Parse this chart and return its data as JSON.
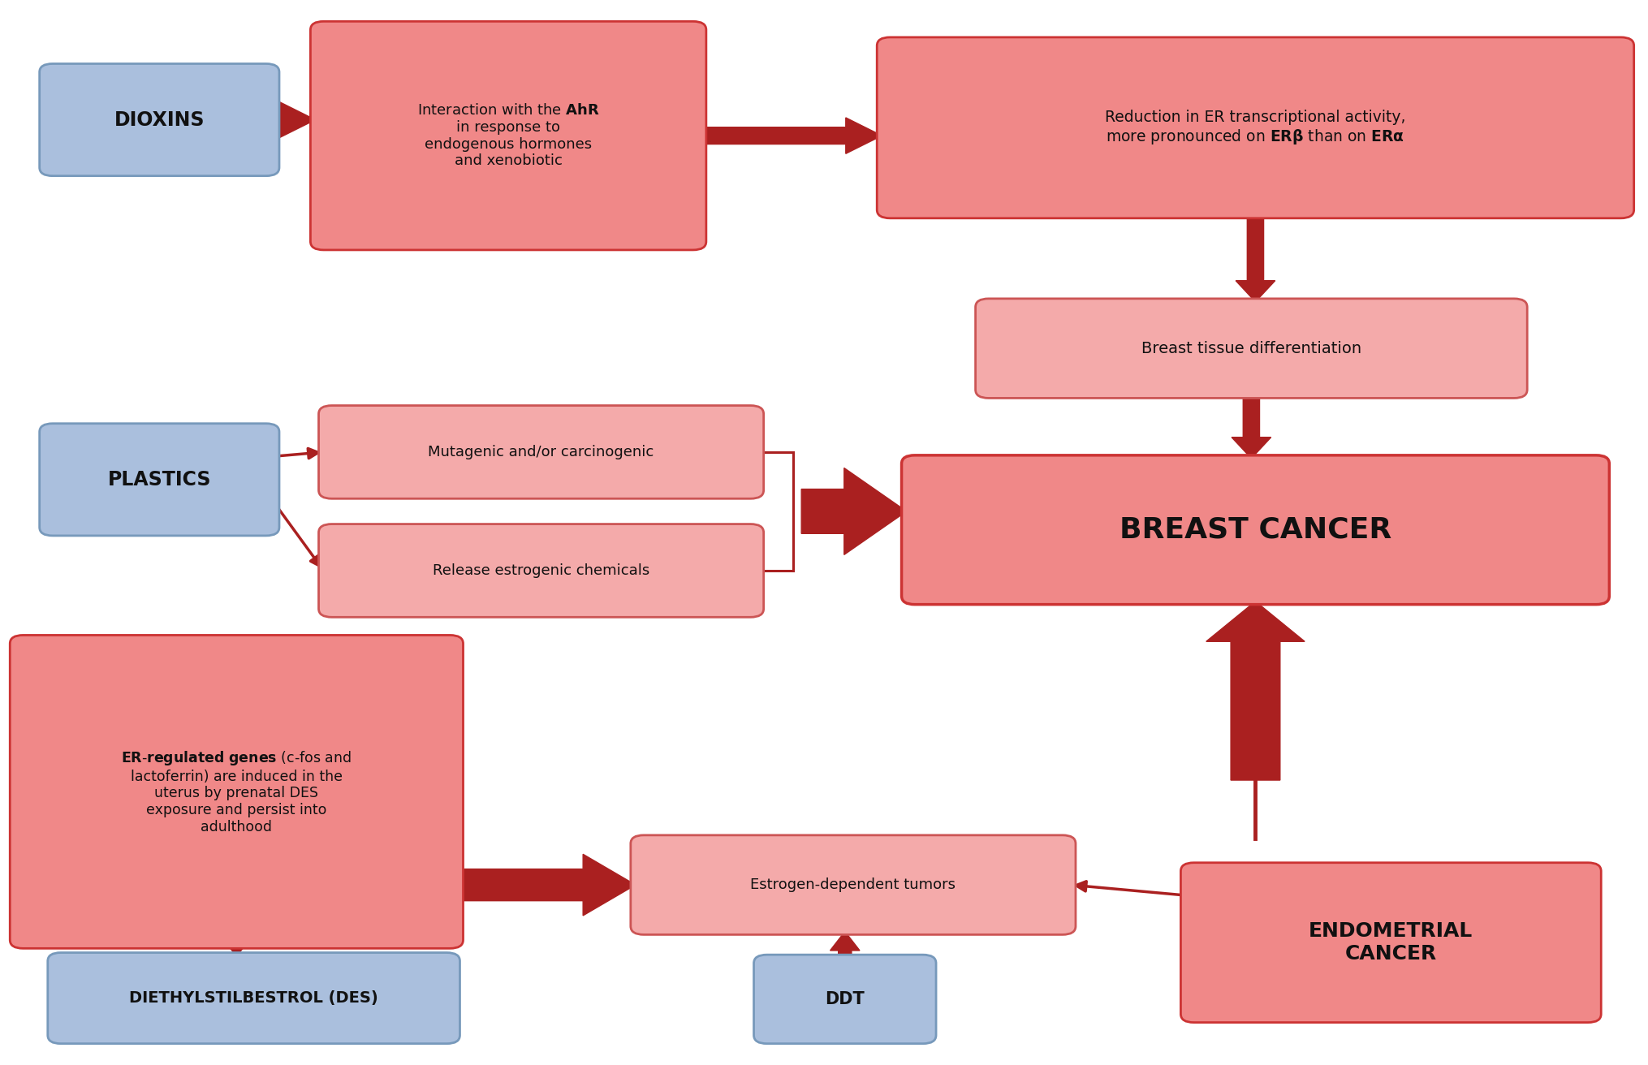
{
  "bg_color": "#ffffff",
  "pink_face": "#f08888",
  "pink_edge": "#cc3333",
  "pink_light_face": "#f4aaaa",
  "pink_light_edge": "#cc5555",
  "blue_face": "#aabfdd",
  "blue_edge": "#7799bb",
  "arrow_color": "#aa2020",
  "text_dark": "#111111",
  "boxes": {
    "dioxins": [
      0.03,
      0.845,
      0.13,
      0.09
    ],
    "interaction": [
      0.195,
      0.775,
      0.225,
      0.2
    ],
    "reduction": [
      0.54,
      0.805,
      0.445,
      0.155
    ],
    "breast_diff": [
      0.6,
      0.635,
      0.32,
      0.078
    ],
    "breast_cancer": [
      0.555,
      0.44,
      0.415,
      0.125
    ],
    "plastics": [
      0.03,
      0.505,
      0.13,
      0.09
    ],
    "mutagenic": [
      0.2,
      0.54,
      0.255,
      0.072
    ],
    "release": [
      0.2,
      0.428,
      0.255,
      0.072
    ],
    "er_genes": [
      0.012,
      0.115,
      0.26,
      0.28
    ],
    "des": [
      0.035,
      0.025,
      0.235,
      0.07
    ],
    "estrogen_tumors": [
      0.39,
      0.128,
      0.255,
      0.078
    ],
    "ddt": [
      0.465,
      0.025,
      0.095,
      0.068
    ],
    "endometrial": [
      0.725,
      0.045,
      0.24,
      0.135
    ]
  }
}
